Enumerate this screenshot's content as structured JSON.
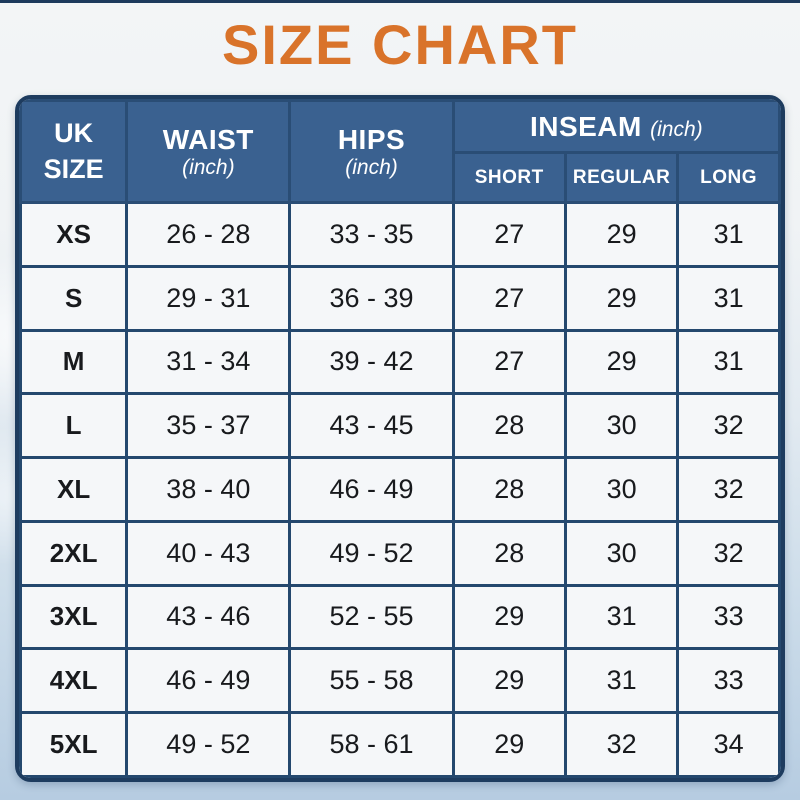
{
  "page": {
    "title": "SIZE CHART"
  },
  "colors": {
    "title_orange": "#D9732A",
    "header_blue": "#3A6190",
    "grid_navy": "#24486E",
    "outer_border_navy": "#1E3C5F",
    "cell_bg": "#F5F7F9",
    "background_top": "#F3F5F6",
    "background_bottom": "#B6CCE1",
    "header_text": "#FFFFFF",
    "body_text": "#181A1D"
  },
  "table_header": {
    "uk_size_line1": "UK",
    "uk_size_line2": "SIZE",
    "waist": "WAIST",
    "waist_unit": "(inch)",
    "hips": "HIPS",
    "hips_unit": "(inch)",
    "inseam": "INSEAM",
    "inseam_unit": "(inch)",
    "short": "SHORT",
    "regular": "REGULAR",
    "long": "LONG"
  },
  "chart_data": {
    "type": "table",
    "title": "SIZE CHART",
    "columns": [
      "UK SIZE",
      "WAIST (inch)",
      "HIPS (inch)",
      "INSEAM SHORT (inch)",
      "INSEAM REGULAR (inch)",
      "INSEAM LONG (inch)"
    ],
    "rows": [
      [
        "XS",
        "26 - 28",
        "33 - 35",
        "27",
        "29",
        "31"
      ],
      [
        "S",
        "29 - 31",
        "36 - 39",
        "27",
        "29",
        "31"
      ],
      [
        "M",
        "31 - 34",
        "39 - 42",
        "27",
        "29",
        "31"
      ],
      [
        "L",
        "35 - 37",
        "43 - 45",
        "28",
        "30",
        "32"
      ],
      [
        "XL",
        "38 - 40",
        "46 - 49",
        "28",
        "30",
        "32"
      ],
      [
        "2XL",
        "40 - 43",
        "49 - 52",
        "28",
        "30",
        "32"
      ],
      [
        "3XL",
        "43 - 46",
        "52 - 55",
        "29",
        "31",
        "33"
      ],
      [
        "4XL",
        "46 - 49",
        "55 - 58",
        "29",
        "31",
        "33"
      ],
      [
        "5XL",
        "49 - 52",
        "58 - 61",
        "29",
        "32",
        "34"
      ]
    ]
  }
}
